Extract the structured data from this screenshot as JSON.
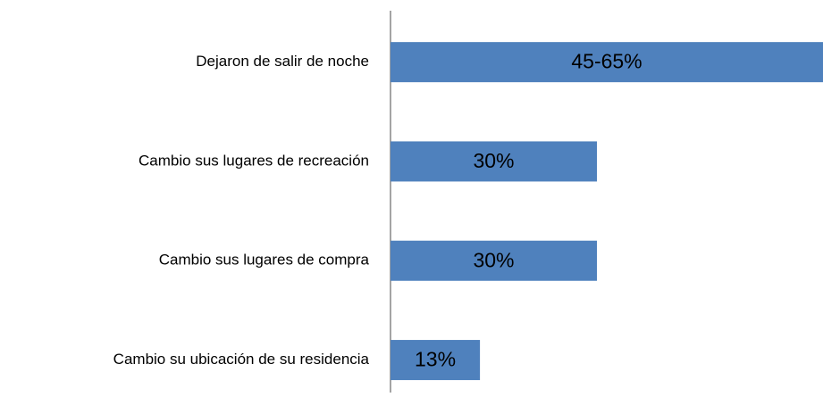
{
  "chart_data": {
    "type": "bar",
    "orientation": "horizontal",
    "categories": [
      "Dejaron de salir de noche",
      "Cambio sus lugares de recreación",
      "Cambio sus lugares de compra",
      "Cambio su ubicación de su residencia"
    ],
    "values": [
      65,
      30,
      30,
      13
    ],
    "value_labels": [
      "45-65%",
      "30%",
      "30%",
      "13%"
    ],
    "color": "#4f81bd"
  }
}
